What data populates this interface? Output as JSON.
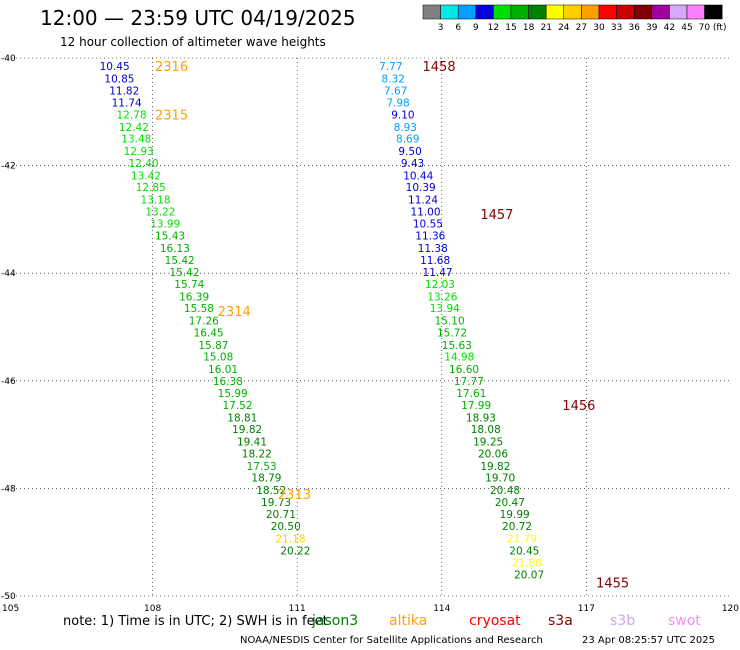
{
  "title": "12:00 — 23:59 UTC 04/19/2025",
  "subtitle": "12 hour collection of altimeter wave heights",
  "colorbar": {
    "colors": [
      "#808080",
      "#00e8e8",
      "#00a0ff",
      "#0000d8",
      "#00e000",
      "#00b000",
      "#008000",
      "#ffff00",
      "#ffd000",
      "#ffa000",
      "#ff0000",
      "#c80000",
      "#800000",
      "#a000a0",
      "#d8a8f8",
      "#ff80ff",
      "#000000"
    ],
    "labels": [
      "3",
      "6",
      "9",
      "12",
      "15",
      "18",
      "21",
      "24",
      "27",
      "30",
      "33",
      "36",
      "39",
      "42",
      "45",
      "70 (ft)"
    ]
  },
  "footer": {
    "note": "note:  1) Time is in UTC; 2) SWH is in feet",
    "credit": "NOAA/NESDIS Center for Satellite Applications and Research",
    "timestamp": "23 Apr 08:25:57 UTC 2025"
  },
  "legend": [
    {
      "name": "jason3",
      "color": "#008000"
    },
    {
      "name": "altika",
      "color": "#ffa000"
    },
    {
      "name": "cryosat",
      "color": "#ff0000"
    },
    {
      "name": "s3a",
      "color": "#800000"
    },
    {
      "name": "s3b",
      "color": "#c8a8f0"
    },
    {
      "name": "swot",
      "color": "#f090f0"
    }
  ],
  "chart_data": {
    "type": "scatter",
    "title": "12:00 — 23:59 UTC 04/19/2025",
    "subtitle": "12 hour collection of altimeter wave heights",
    "xlim": [
      105,
      120
    ],
    "ylim": [
      -50,
      -40
    ],
    "xticks": [
      105,
      108,
      111,
      114,
      117,
      120
    ],
    "yticks": [
      -50,
      -48,
      -46,
      -44,
      -42,
      -40
    ],
    "xtick_labels": [
      "105",
      "108",
      "111",
      "114",
      "117",
      "120"
    ],
    "ytick_labels": [
      "-50",
      "-48",
      "-46",
      "-44",
      "-42",
      "-40"
    ],
    "grid": true,
    "time_labels": [
      {
        "text": "2316",
        "x": 108.05,
        "y": -40.15,
        "color": "#ffa000"
      },
      {
        "text": "2315",
        "x": 108.05,
        "y": -41.05,
        "color": "#ffa000"
      },
      {
        "text": "2314",
        "x": 109.35,
        "y": -44.7,
        "color": "#ffa000"
      },
      {
        "text": "2313",
        "x": 110.6,
        "y": -48.1,
        "color": "#ffa000"
      },
      {
        "text": "1458",
        "x": 113.6,
        "y": -40.15,
        "color": "#800000"
      },
      {
        "text": "1457",
        "x": 114.8,
        "y": -42.9,
        "color": "#800000"
      },
      {
        "text": "1456",
        "x": 116.5,
        "y": -46.45,
        "color": "#800000"
      },
      {
        "text": "1455",
        "x": 117.2,
        "y": -49.75,
        "color": "#800000"
      }
    ],
    "series": [
      {
        "name": "altika",
        "points": [
          {
            "x": 106.9,
            "y": -40.15,
            "label": "10.45",
            "color": "#0000d8"
          },
          {
            "x": 107.0,
            "y": -40.38,
            "label": "10.85",
            "color": "#0000d8"
          },
          {
            "x": 107.1,
            "y": -40.6,
            "label": "11.82",
            "color": "#0000d8"
          },
          {
            "x": 107.15,
            "y": -40.83,
            "label": "11.74",
            "color": "#0000d8"
          },
          {
            "x": 107.25,
            "y": -41.05,
            "label": "12.78",
            "color": "#00e000"
          },
          {
            "x": 107.3,
            "y": -41.28,
            "label": "12.42",
            "color": "#00e000"
          },
          {
            "x": 107.35,
            "y": -41.5,
            "label": "13.48",
            "color": "#00e000"
          },
          {
            "x": 107.4,
            "y": -41.73,
            "label": "12.93",
            "color": "#00e000"
          },
          {
            "x": 107.5,
            "y": -41.95,
            "label": "12.40",
            "color": "#00e000"
          },
          {
            "x": 107.55,
            "y": -42.18,
            "label": "13.42",
            "color": "#00e000"
          },
          {
            "x": 107.65,
            "y": -42.4,
            "label": "12.85",
            "color": "#00e000"
          },
          {
            "x": 107.75,
            "y": -42.63,
            "label": "13.18",
            "color": "#00e000"
          },
          {
            "x": 107.85,
            "y": -42.85,
            "label": "13.22",
            "color": "#00e000"
          },
          {
            "x": 107.95,
            "y": -43.08,
            "label": "13.99",
            "color": "#00e000"
          },
          {
            "x": 108.05,
            "y": -43.3,
            "label": "15.43",
            "color": "#00b000"
          },
          {
            "x": 108.15,
            "y": -43.53,
            "label": "16.13",
            "color": "#00b000"
          },
          {
            "x": 108.25,
            "y": -43.75,
            "label": "15.42",
            "color": "#00b000"
          },
          {
            "x": 108.35,
            "y": -43.98,
            "label": "15.42",
            "color": "#00b000"
          },
          {
            "x": 108.45,
            "y": -44.2,
            "label": "15.74",
            "color": "#00b000"
          },
          {
            "x": 108.55,
            "y": -44.43,
            "label": "16.39",
            "color": "#00b000"
          },
          {
            "x": 108.65,
            "y": -44.65,
            "label": "15.58",
            "color": "#00b000"
          },
          {
            "x": 108.75,
            "y": -44.88,
            "label": "17.26",
            "color": "#00b000"
          },
          {
            "x": 108.85,
            "y": -45.1,
            "label": "16.45",
            "color": "#00b000"
          },
          {
            "x": 108.95,
            "y": -45.33,
            "label": "15.87",
            "color": "#00b000"
          },
          {
            "x": 109.05,
            "y": -45.55,
            "label": "15.08",
            "color": "#00b000"
          },
          {
            "x": 109.15,
            "y": -45.78,
            "label": "16.01",
            "color": "#00b000"
          },
          {
            "x": 109.25,
            "y": -46.0,
            "label": "16.38",
            "color": "#00b000"
          },
          {
            "x": 109.35,
            "y": -46.23,
            "label": "15.99",
            "color": "#00b000"
          },
          {
            "x": 109.45,
            "y": -46.45,
            "label": "17.52",
            "color": "#00b000"
          },
          {
            "x": 109.55,
            "y": -46.68,
            "label": "18.81",
            "color": "#008000"
          },
          {
            "x": 109.65,
            "y": -46.9,
            "label": "19.82",
            "color": "#008000"
          },
          {
            "x": 109.75,
            "y": -47.13,
            "label": "19.41",
            "color": "#008000"
          },
          {
            "x": 109.85,
            "y": -47.35,
            "label": "18.22",
            "color": "#008000"
          },
          {
            "x": 109.95,
            "y": -47.58,
            "label": "17.53",
            "color": "#00b000"
          },
          {
            "x": 110.05,
            "y": -47.8,
            "label": "18.79",
            "color": "#008000"
          },
          {
            "x": 110.15,
            "y": -48.03,
            "label": "18.52",
            "color": "#008000"
          },
          {
            "x": 110.25,
            "y": -48.25,
            "label": "19.73",
            "color": "#008000"
          },
          {
            "x": 110.35,
            "y": -48.48,
            "label": "20.71",
            "color": "#008000"
          },
          {
            "x": 110.45,
            "y": -48.7,
            "label": "20.50",
            "color": "#008000"
          },
          {
            "x": 110.55,
            "y": -48.93,
            "label": "21.18",
            "color": "#ffd000"
          },
          {
            "x": 110.65,
            "y": -49.15,
            "label": "20.22",
            "color": "#008000"
          }
        ]
      },
      {
        "name": "s3a",
        "points": [
          {
            "x": 112.7,
            "y": -40.15,
            "label": "7.77",
            "color": "#00a0ff"
          },
          {
            "x": 112.75,
            "y": -40.38,
            "label": "8.32",
            "color": "#00a0ff"
          },
          {
            "x": 112.8,
            "y": -40.6,
            "label": "7.67",
            "color": "#00a0ff"
          },
          {
            "x": 112.85,
            "y": -40.83,
            "label": "7.98",
            "color": "#00a0ff"
          },
          {
            "x": 112.95,
            "y": -41.05,
            "label": "9.10",
            "color": "#0000d8"
          },
          {
            "x": 113.0,
            "y": -41.28,
            "label": "8.93",
            "color": "#00a0ff"
          },
          {
            "x": 113.05,
            "y": -41.5,
            "label": "8.69",
            "color": "#00a0ff"
          },
          {
            "x": 113.1,
            "y": -41.73,
            "label": "9.50",
            "color": "#0000d8"
          },
          {
            "x": 113.15,
            "y": -41.95,
            "label": "9.43",
            "color": "#0000d8"
          },
          {
            "x": 113.2,
            "y": -42.18,
            "label": "10.44",
            "color": "#0000d8"
          },
          {
            "x": 113.25,
            "y": -42.4,
            "label": "10.39",
            "color": "#0000d8"
          },
          {
            "x": 113.3,
            "y": -42.63,
            "label": "11.24",
            "color": "#0000d8"
          },
          {
            "x": 113.35,
            "y": -42.85,
            "label": "11.00",
            "color": "#0000d8"
          },
          {
            "x": 113.4,
            "y": -43.08,
            "label": "10.55",
            "color": "#0000d8"
          },
          {
            "x": 113.45,
            "y": -43.3,
            "label": "11.36",
            "color": "#0000d8"
          },
          {
            "x": 113.5,
            "y": -43.53,
            "label": "11.38",
            "color": "#0000d8"
          },
          {
            "x": 113.55,
            "y": -43.75,
            "label": "11.68",
            "color": "#0000d8"
          },
          {
            "x": 113.6,
            "y": -43.98,
            "label": "11.47",
            "color": "#0000d8"
          },
          {
            "x": 113.65,
            "y": -44.2,
            "label": "12.03",
            "color": "#00e000"
          },
          {
            "x": 113.7,
            "y": -44.43,
            "label": "13.26",
            "color": "#00e000"
          },
          {
            "x": 113.75,
            "y": -44.65,
            "label": "13.94",
            "color": "#00e000"
          },
          {
            "x": 113.85,
            "y": -44.88,
            "label": "15.10",
            "color": "#00b000"
          },
          {
            "x": 113.9,
            "y": -45.1,
            "label": "15.72",
            "color": "#00b000"
          },
          {
            "x": 114.0,
            "y": -45.33,
            "label": "15.63",
            "color": "#00b000"
          },
          {
            "x": 114.05,
            "y": -45.55,
            "label": "14.98",
            "color": "#00e000"
          },
          {
            "x": 114.15,
            "y": -45.78,
            "label": "16.60",
            "color": "#00b000"
          },
          {
            "x": 114.25,
            "y": -46.0,
            "label": "17.77",
            "color": "#00b000"
          },
          {
            "x": 114.3,
            "y": -46.23,
            "label": "17.61",
            "color": "#00b000"
          },
          {
            "x": 114.4,
            "y": -46.45,
            "label": "17.99",
            "color": "#00b000"
          },
          {
            "x": 114.5,
            "y": -46.68,
            "label": "18.93",
            "color": "#008000"
          },
          {
            "x": 114.6,
            "y": -46.9,
            "label": "18.08",
            "color": "#008000"
          },
          {
            "x": 114.65,
            "y": -47.13,
            "label": "19.25",
            "color": "#008000"
          },
          {
            "x": 114.75,
            "y": -47.35,
            "label": "20.06",
            "color": "#008000"
          },
          {
            "x": 114.8,
            "y": -47.58,
            "label": "19.82",
            "color": "#008000"
          },
          {
            "x": 114.9,
            "y": -47.8,
            "label": "19.70",
            "color": "#008000"
          },
          {
            "x": 115.0,
            "y": -48.03,
            "label": "20.48",
            "color": "#008000"
          },
          {
            "x": 115.1,
            "y": -48.25,
            "label": "20.47",
            "color": "#008000"
          },
          {
            "x": 115.2,
            "y": -48.48,
            "label": "19.99",
            "color": "#008000"
          },
          {
            "x": 115.25,
            "y": -48.7,
            "label": "20.72",
            "color": "#008000"
          },
          {
            "x": 115.35,
            "y": -48.93,
            "label": "21.79",
            "color": "#ffff00"
          },
          {
            "x": 115.4,
            "y": -49.15,
            "label": "20.45",
            "color": "#008000"
          },
          {
            "x": 115.45,
            "y": -49.38,
            "label": "21.88",
            "color": "#ffff00"
          },
          {
            "x": 115.5,
            "y": -49.6,
            "label": "20.07",
            "color": "#008000"
          }
        ]
      }
    ]
  }
}
